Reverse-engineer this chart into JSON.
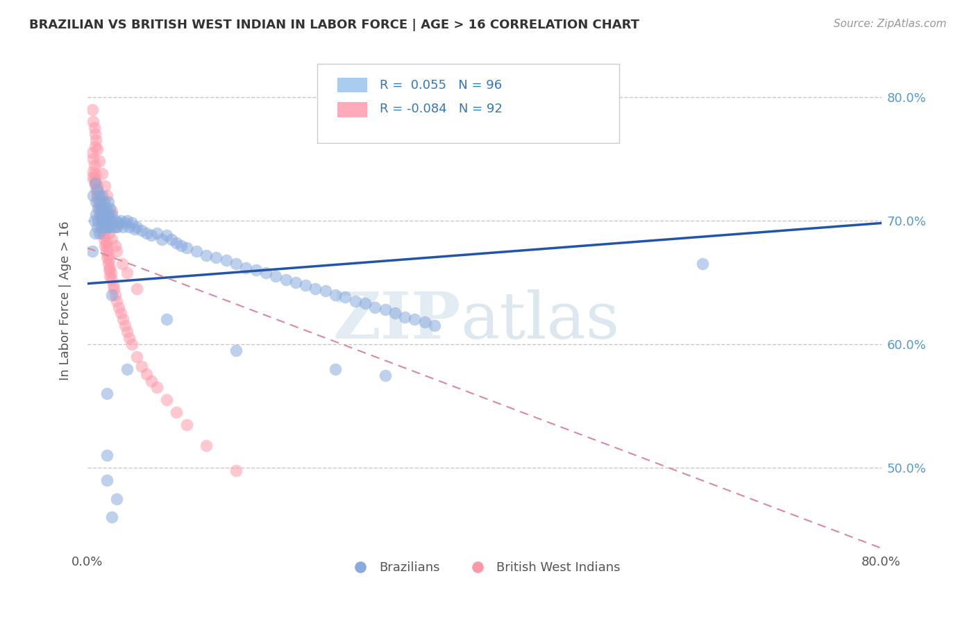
{
  "title": "BRAZILIAN VS BRITISH WEST INDIAN IN LABOR FORCE | AGE > 16 CORRELATION CHART",
  "source_text": "Source: ZipAtlas.com",
  "ylabel": "In Labor Force | Age > 16",
  "xlim": [
    0.0,
    0.8
  ],
  "ylim": [
    0.435,
    0.835
  ],
  "yticks": [
    0.5,
    0.6,
    0.7,
    0.8
  ],
  "ytick_labels": [
    "50.0%",
    "60.0%",
    "70.0%",
    "80.0%"
  ],
  "xticks": [
    0.0,
    0.8
  ],
  "xtick_labels": [
    "0.0%",
    "80.0%"
  ],
  "blue_R": 0.055,
  "blue_N": 96,
  "pink_R": -0.084,
  "pink_N": 92,
  "blue_color": "#88aadd",
  "pink_color": "#ff99aa",
  "blue_trend_color": "#2255aa",
  "pink_trend_color": "#dd8899",
  "legend_label_blue": "Brazilians",
  "legend_label_pink": "British West Indians",
  "watermark_zip": "ZIP",
  "watermark_atlas": "atlas",
  "background_color": "#ffffff",
  "grid_color": "#bbbbbb",
  "blue_trend_x": [
    0.0,
    0.8
  ],
  "blue_trend_y": [
    0.649,
    0.698
  ],
  "pink_trend_x": [
    0.0,
    0.8
  ],
  "pink_trend_y": [
    0.678,
    0.435
  ],
  "blue_x": [
    0.005,
    0.006,
    0.007,
    0.008,
    0.008,
    0.009,
    0.009,
    0.01,
    0.01,
    0.011,
    0.011,
    0.012,
    0.012,
    0.013,
    0.013,
    0.014,
    0.014,
    0.015,
    0.015,
    0.016,
    0.016,
    0.017,
    0.017,
    0.018,
    0.018,
    0.019,
    0.019,
    0.02,
    0.02,
    0.021,
    0.021,
    0.022,
    0.022,
    0.023,
    0.023,
    0.024,
    0.025,
    0.026,
    0.028,
    0.03,
    0.032,
    0.034,
    0.036,
    0.038,
    0.04,
    0.042,
    0.045,
    0.048,
    0.05,
    0.055,
    0.06,
    0.065,
    0.07,
    0.075,
    0.08,
    0.085,
    0.09,
    0.095,
    0.1,
    0.11,
    0.12,
    0.13,
    0.14,
    0.15,
    0.16,
    0.17,
    0.18,
    0.19,
    0.2,
    0.21,
    0.22,
    0.23,
    0.24,
    0.25,
    0.26,
    0.27,
    0.28,
    0.29,
    0.3,
    0.31,
    0.32,
    0.33,
    0.34,
    0.35,
    0.25,
    0.3,
    0.15,
    0.08,
    0.04,
    0.025,
    0.02,
    0.02,
    0.62,
    0.03,
    0.025,
    0.02
  ],
  "blue_y": [
    0.675,
    0.72,
    0.7,
    0.73,
    0.69,
    0.715,
    0.705,
    0.725,
    0.695,
    0.71,
    0.7,
    0.72,
    0.69,
    0.715,
    0.705,
    0.71,
    0.695,
    0.705,
    0.72,
    0.7,
    0.71,
    0.695,
    0.715,
    0.7,
    0.705,
    0.695,
    0.71,
    0.7,
    0.705,
    0.695,
    0.715,
    0.7,
    0.705,
    0.695,
    0.71,
    0.7,
    0.705,
    0.695,
    0.7,
    0.695,
    0.698,
    0.7,
    0.695,
    0.698,
    0.7,
    0.695,
    0.698,
    0.693,
    0.695,
    0.692,
    0.69,
    0.688,
    0.69,
    0.685,
    0.688,
    0.685,
    0.682,
    0.68,
    0.678,
    0.675,
    0.672,
    0.67,
    0.668,
    0.665,
    0.662,
    0.66,
    0.658,
    0.655,
    0.652,
    0.65,
    0.648,
    0.645,
    0.643,
    0.64,
    0.638,
    0.635,
    0.633,
    0.63,
    0.628,
    0.625,
    0.622,
    0.62,
    0.618,
    0.615,
    0.58,
    0.575,
    0.595,
    0.62,
    0.58,
    0.64,
    0.49,
    0.51,
    0.665,
    0.475,
    0.46,
    0.56
  ],
  "pink_x": [
    0.005,
    0.005,
    0.006,
    0.006,
    0.007,
    0.007,
    0.008,
    0.008,
    0.009,
    0.009,
    0.01,
    0.01,
    0.011,
    0.011,
    0.012,
    0.012,
    0.013,
    0.013,
    0.014,
    0.014,
    0.015,
    0.015,
    0.016,
    0.016,
    0.017,
    0.017,
    0.018,
    0.018,
    0.019,
    0.019,
    0.02,
    0.02,
    0.021,
    0.021,
    0.022,
    0.022,
    0.023,
    0.023,
    0.024,
    0.025,
    0.026,
    0.027,
    0.028,
    0.03,
    0.032,
    0.034,
    0.036,
    0.038,
    0.04,
    0.042,
    0.045,
    0.05,
    0.055,
    0.06,
    0.065,
    0.07,
    0.08,
    0.09,
    0.1,
    0.12,
    0.15,
    0.02,
    0.015,
    0.012,
    0.01,
    0.008,
    0.008,
    0.01,
    0.012,
    0.014,
    0.016,
    0.018,
    0.02,
    0.022,
    0.025,
    0.028,
    0.03,
    0.035,
    0.04,
    0.05,
    0.005,
    0.006,
    0.007,
    0.008,
    0.009,
    0.01,
    0.012,
    0.015,
    0.018,
    0.02,
    0.025,
    0.03
  ],
  "pink_y": [
    0.735,
    0.755,
    0.75,
    0.74,
    0.745,
    0.735,
    0.738,
    0.73,
    0.732,
    0.725,
    0.728,
    0.72,
    0.722,
    0.715,
    0.718,
    0.71,
    0.712,
    0.705,
    0.708,
    0.7,
    0.702,
    0.695,
    0.698,
    0.69,
    0.692,
    0.685,
    0.688,
    0.68,
    0.682,
    0.675,
    0.678,
    0.67,
    0.672,
    0.665,
    0.668,
    0.66,
    0.662,
    0.655,
    0.658,
    0.652,
    0.648,
    0.645,
    0.64,
    0.635,
    0.63,
    0.625,
    0.62,
    0.615,
    0.61,
    0.605,
    0.6,
    0.59,
    0.582,
    0.576,
    0.57,
    0.565,
    0.555,
    0.545,
    0.535,
    0.518,
    0.498,
    0.705,
    0.715,
    0.72,
    0.725,
    0.73,
    0.76,
    0.72,
    0.715,
    0.71,
    0.705,
    0.7,
    0.695,
    0.69,
    0.685,
    0.68,
    0.675,
    0.665,
    0.658,
    0.645,
    0.79,
    0.78,
    0.775,
    0.77,
    0.765,
    0.758,
    0.748,
    0.738,
    0.728,
    0.72,
    0.708,
    0.695
  ]
}
